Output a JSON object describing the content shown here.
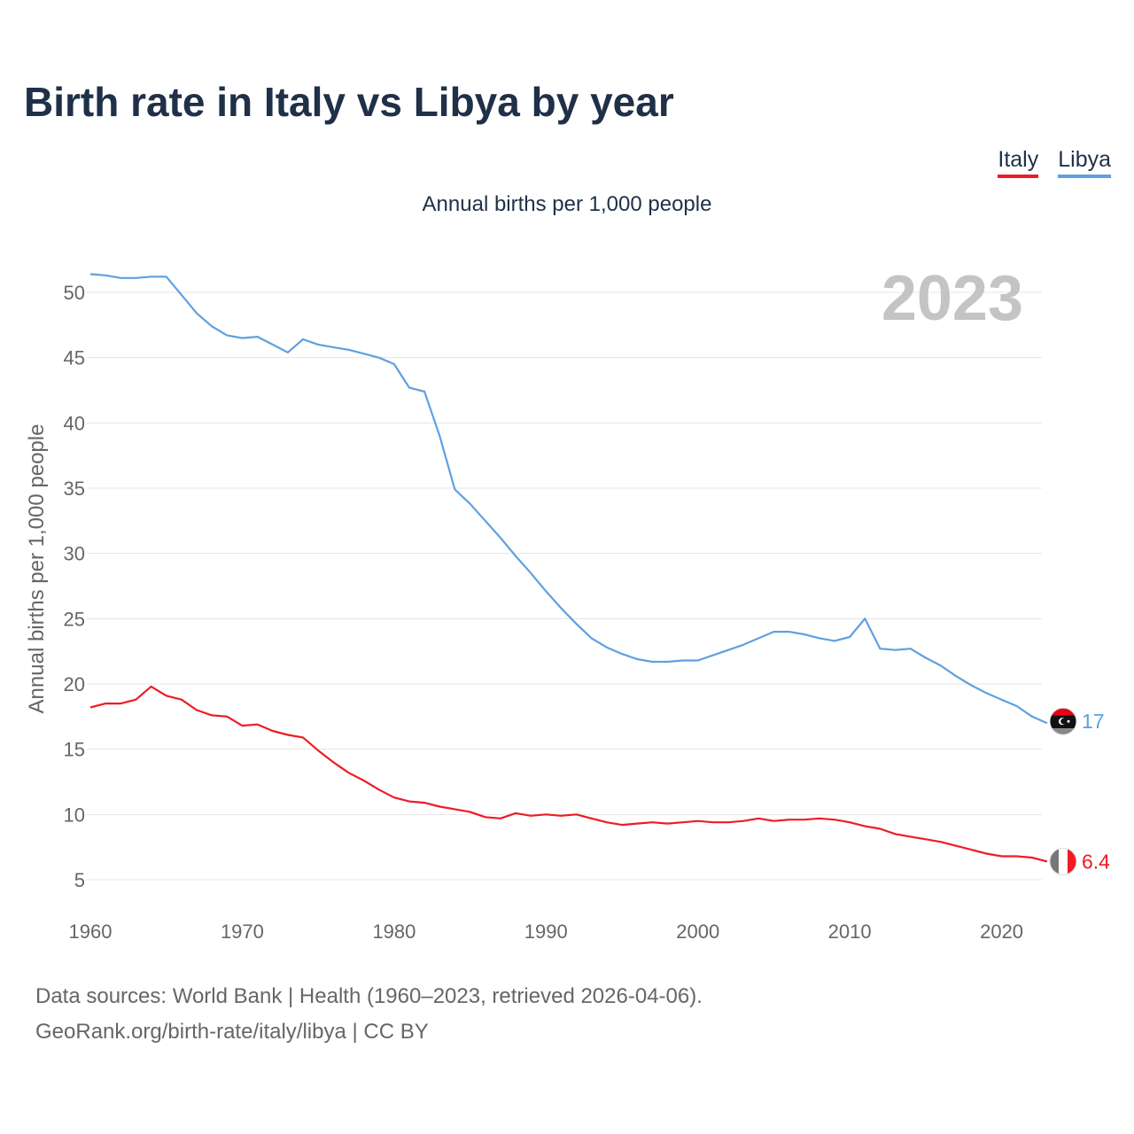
{
  "title": "Birth rate in Italy vs Libya by year",
  "subtitle": "Annual births per 1,000 people",
  "year_label": "2023",
  "legend": [
    {
      "name": "Italy",
      "color": "#ee1c25"
    },
    {
      "name": "Libya",
      "color": "#5fa0e0"
    }
  ],
  "footer": {
    "line1": "Data sources: World Bank | Health (1960–2023, retrieved 2026-04-06).",
    "line2": "GeoRank.org/birth-rate/italy/libya | CC BY"
  },
  "chart_data": {
    "type": "line",
    "title": "Birth rate in Italy vs Libya by year",
    "subtitle": "Annual births per 1,000 people",
    "xlabel": "",
    "ylabel": "Annual births per 1,000 people",
    "xlim": [
      1960,
      2023
    ],
    "ylim": [
      3,
      53
    ],
    "xticks": [
      1960,
      1970,
      1980,
      1990,
      2000,
      2010,
      2020
    ],
    "yticks": [
      5,
      10,
      15,
      20,
      25,
      30,
      35,
      40,
      45,
      50
    ],
    "grid": "horizontal",
    "legend_position": "top-right",
    "x": [
      1960,
      1961,
      1962,
      1963,
      1964,
      1965,
      1966,
      1967,
      1968,
      1969,
      1970,
      1971,
      1972,
      1973,
      1974,
      1975,
      1976,
      1977,
      1978,
      1979,
      1980,
      1981,
      1982,
      1983,
      1984,
      1985,
      1986,
      1987,
      1988,
      1989,
      1990,
      1991,
      1992,
      1993,
      1994,
      1995,
      1996,
      1997,
      1998,
      1999,
      2000,
      2001,
      2002,
      2003,
      2004,
      2005,
      2006,
      2007,
      2008,
      2009,
      2010,
      2011,
      2012,
      2013,
      2014,
      2015,
      2016,
      2017,
      2018,
      2019,
      2020,
      2021,
      2022,
      2023
    ],
    "series": [
      {
        "name": "Italy",
        "color": "#ee1c25",
        "end_label": "6.4",
        "values": [
          18.2,
          18.5,
          18.5,
          18.8,
          19.8,
          19.1,
          18.8,
          18.0,
          17.6,
          17.5,
          16.8,
          16.9,
          16.4,
          16.1,
          15.9,
          14.9,
          14.0,
          13.2,
          12.6,
          11.9,
          11.3,
          11.0,
          10.9,
          10.6,
          10.4,
          10.2,
          9.8,
          9.7,
          10.1,
          9.9,
          10.0,
          9.9,
          10.0,
          9.7,
          9.4,
          9.2,
          9.3,
          9.4,
          9.3,
          9.4,
          9.5,
          9.4,
          9.4,
          9.5,
          9.7,
          9.5,
          9.6,
          9.6,
          9.7,
          9.6,
          9.4,
          9.1,
          8.9,
          8.5,
          8.3,
          8.1,
          7.9,
          7.6,
          7.3,
          7.0,
          6.8,
          6.8,
          6.7,
          6.4
        ]
      },
      {
        "name": "Libya",
        "color": "#5fa0e0",
        "end_label": "17",
        "values": [
          51.4,
          51.3,
          51.1,
          51.1,
          51.2,
          51.2,
          49.8,
          48.4,
          47.4,
          46.7,
          46.5,
          46.6,
          46.0,
          45.4,
          46.4,
          46.0,
          45.8,
          45.6,
          45.3,
          45.0,
          44.5,
          42.7,
          42.4,
          39.0,
          34.9,
          33.8,
          32.5,
          31.2,
          29.8,
          28.5,
          27.1,
          25.8,
          24.6,
          23.5,
          22.8,
          22.3,
          21.9,
          21.7,
          21.7,
          21.8,
          21.8,
          22.2,
          22.6,
          23.0,
          23.5,
          24.0,
          24.0,
          23.8,
          23.5,
          23.3,
          23.6,
          25.0,
          22.7,
          22.6,
          22.7,
          22.0,
          21.4,
          20.6,
          19.9,
          19.3,
          18.8,
          18.3,
          17.5,
          17.0
        ]
      }
    ]
  }
}
